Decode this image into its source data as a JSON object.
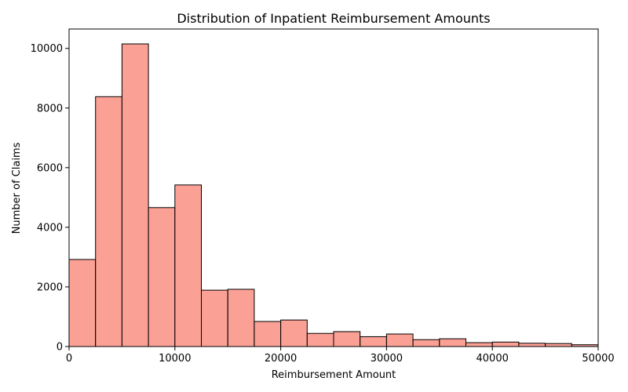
{
  "chart_data": {
    "type": "bar",
    "title": "Distribution of Inpatient Reimbursement Amounts",
    "xlabel": "Reimbursement Amount",
    "ylabel": "Number of Claims",
    "bin_width": 2500,
    "bin_starts": [
      0,
      2500,
      5000,
      7500,
      10000,
      12500,
      15000,
      17500,
      20000,
      22500,
      25000,
      27500,
      30000,
      32500,
      35000,
      37500,
      40000,
      42500,
      45000,
      47500
    ],
    "values": [
      2920,
      8380,
      10150,
      4660,
      5420,
      1890,
      1920,
      840,
      890,
      440,
      500,
      330,
      420,
      230,
      260,
      130,
      150,
      110,
      100,
      60
    ],
    "xlim": [
      0,
      50000
    ],
    "ylim": [
      0,
      10650
    ],
    "x_ticks": [
      0,
      10000,
      20000,
      30000,
      40000,
      50000
    ],
    "x_tick_labels": [
      "0",
      "10000",
      "20000",
      "30000",
      "40000",
      "50000"
    ],
    "y_ticks": [
      0,
      2000,
      4000,
      6000,
      8000,
      10000
    ],
    "y_tick_labels": [
      "0",
      "2000",
      "4000",
      "6000",
      "8000",
      "10000"
    ],
    "grid": false,
    "colors": {
      "bar_fill": "#fa8072",
      "bar_edge": "#000000"
    }
  }
}
